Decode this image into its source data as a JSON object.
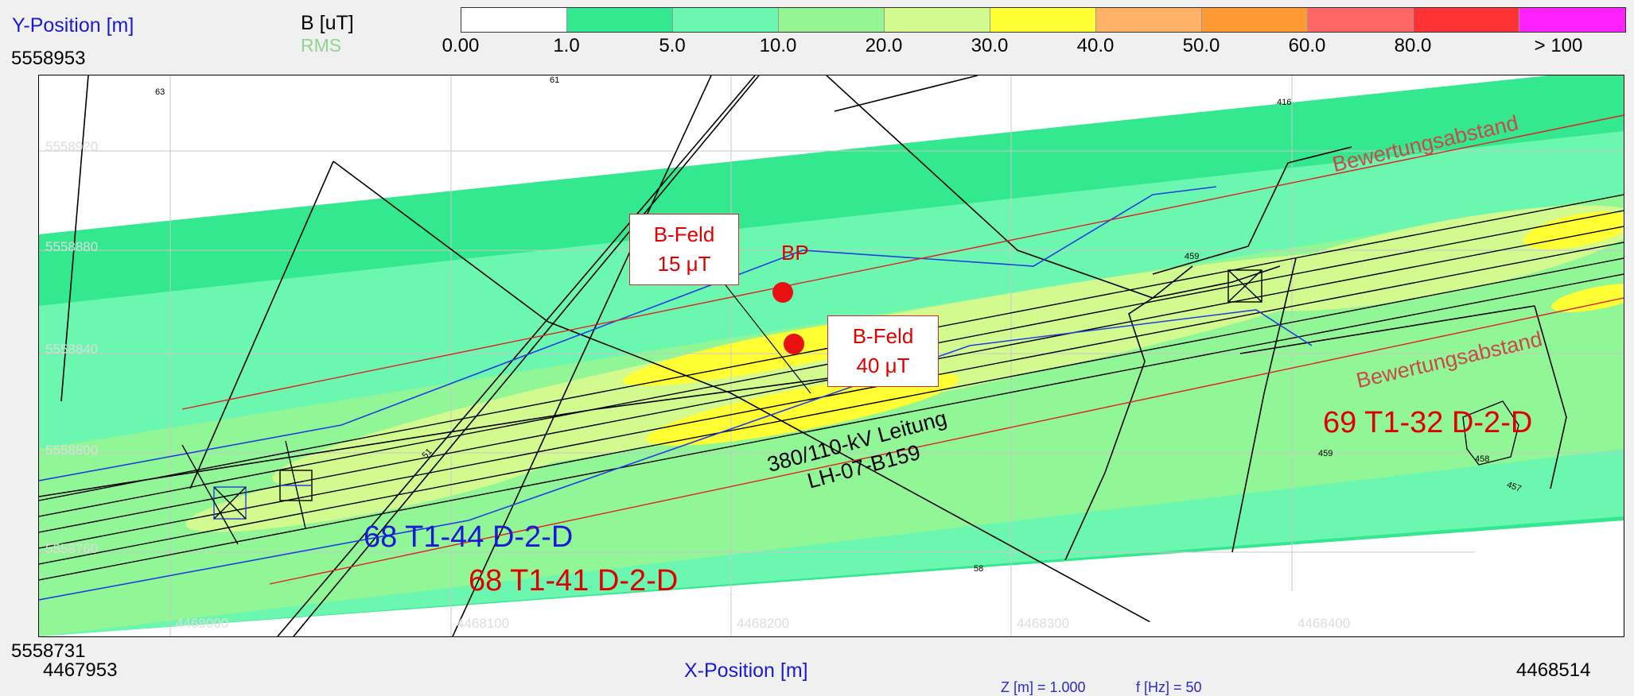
{
  "header": {
    "y_axis_label": "Y-Position [m]",
    "y_max": "5558953",
    "unit_label": "B [uT]",
    "rms_label": "RMS"
  },
  "legend": {
    "bins": [
      {
        "color": "#ffffff"
      },
      {
        "color": "#33e88f"
      },
      {
        "color": "#6bf7b0"
      },
      {
        "color": "#96f593"
      },
      {
        "color": "#d3fa8f"
      },
      {
        "color": "#ffff33"
      },
      {
        "color": "#ffb266"
      },
      {
        "color": "#ff9933"
      },
      {
        "color": "#ff6666"
      },
      {
        "color": "#ff3333"
      },
      {
        "color": "#ff22ff"
      }
    ],
    "ticks": [
      "0.00",
      "1.0",
      "5.0",
      "10.0",
      "20.0",
      "30.0",
      "40.0",
      "50.0",
      "60.0",
      "80.0",
      "> 100"
    ]
  },
  "footer": {
    "y_min": "5558731",
    "x_min": "4467953",
    "x_axis_label": "X-Position [m]",
    "x_max": "4468514",
    "z_label": "Z [m] = 1.000",
    "f_label": "f [Hz] = 50"
  },
  "map": {
    "grid_y_labels": [
      "5558920",
      "5558880",
      "5558840",
      "5558800",
      "5558760"
    ],
    "grid_x_labels": [
      "4468000",
      "4468100",
      "4468200",
      "4468300",
      "4468400"
    ],
    "parcel_numbers": [
      "63",
      "61",
      "416",
      "459",
      "458",
      "457",
      "58",
      "51",
      "459"
    ],
    "callouts": [
      {
        "title": "B-Feld",
        "value": "15 μT"
      },
      {
        "title": "B-Feld",
        "value": "40 μT"
      }
    ],
    "bp_label": "BP",
    "line_label_1": "380/110-kV Leitung",
    "line_label_2": "LH-07-B159",
    "label_68_44": "68 T1-44 D-2-D",
    "label_68_41": "68 T1-41 D-2-D",
    "label_69_32": "69 T1-32 D-2-D",
    "bewertung_1": "Bewertungsabstand",
    "bewertung_2": "Bewertungsabstand"
  }
}
